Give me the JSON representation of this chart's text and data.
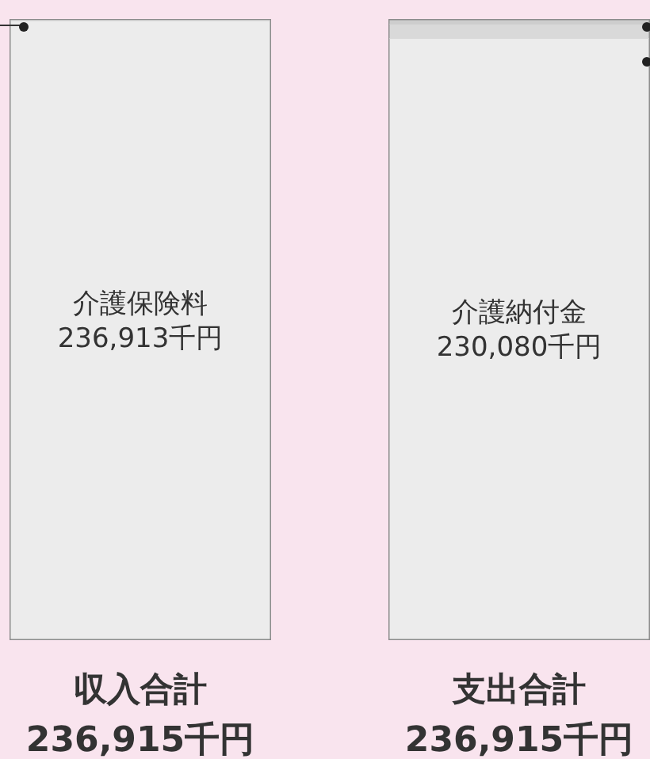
{
  "chart_data": {
    "type": "bar",
    "stacked": true,
    "categories": [
      "収入合計",
      "支出合計"
    ],
    "series": [
      {
        "color": "#ececec",
        "values": [
          236913,
          230080
        ],
        "value_labels": [
          "介護保険料\n236,913千円",
          "介護納付金\n230,080千円"
        ]
      },
      {
        "color": "#d9d9d9",
        "values": [
          null,
          5530
        ]
      },
      {
        "color": "#cdcdcd",
        "values": [
          2,
          1305
        ]
      }
    ],
    "totals": [
      "236,915千円",
      "236,915千円"
    ]
  }
}
